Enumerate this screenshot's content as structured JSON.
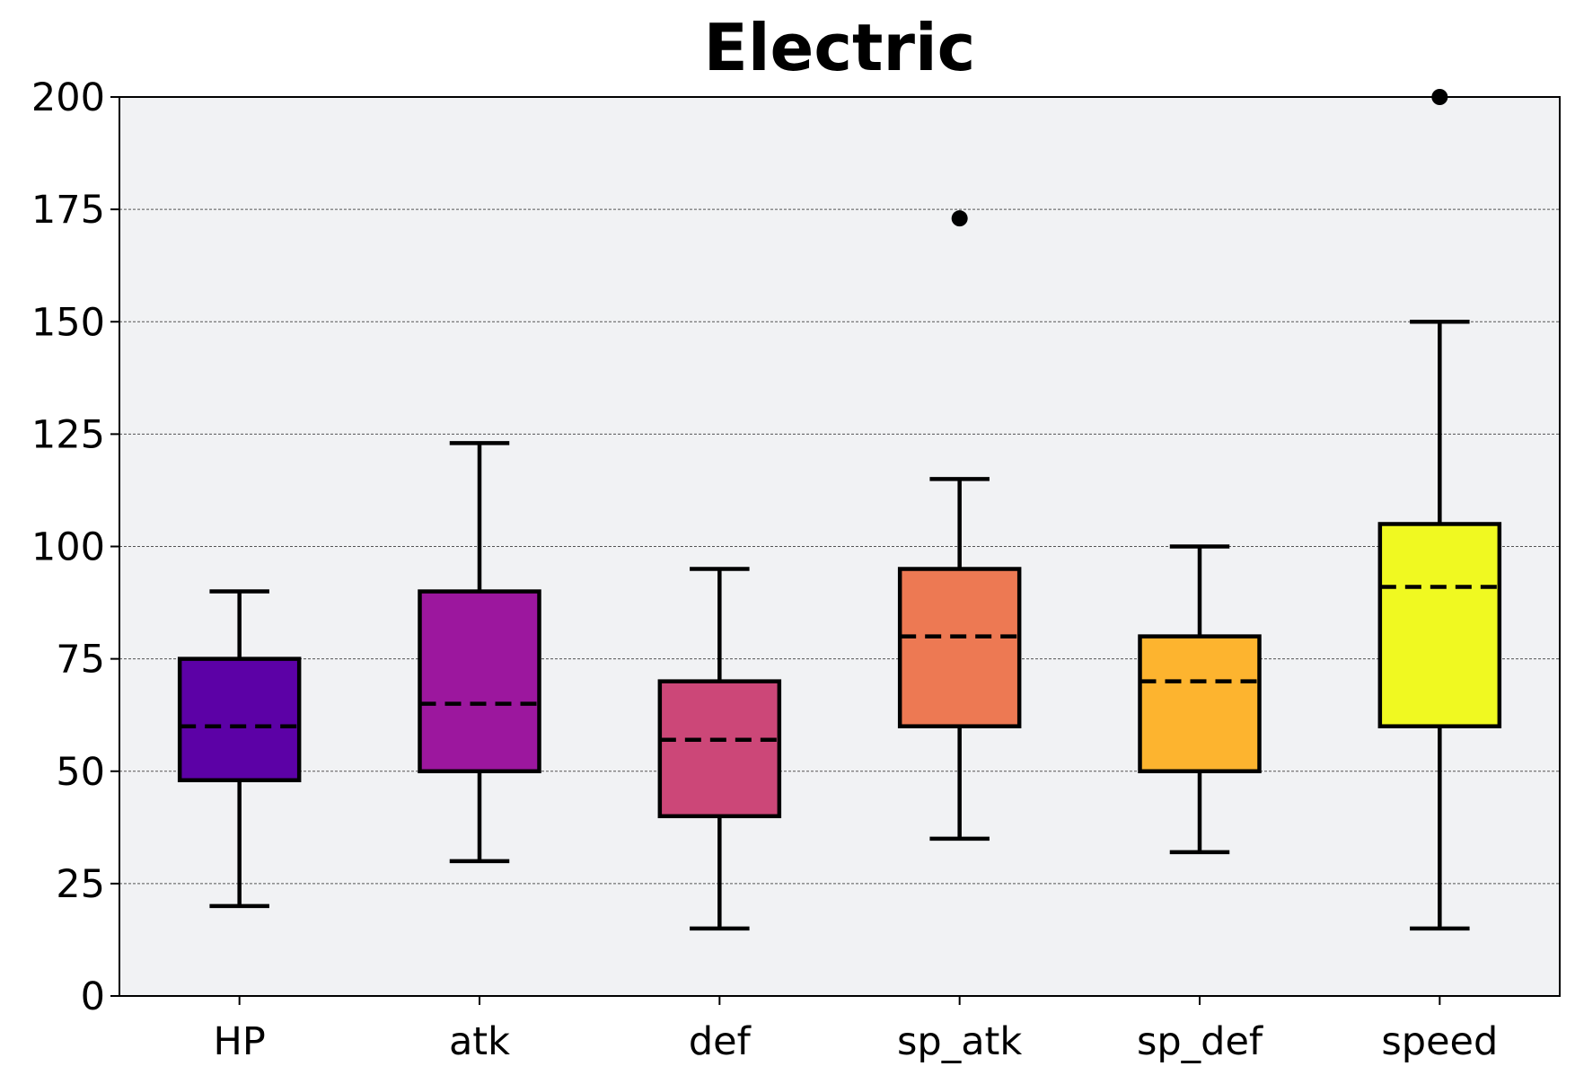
{
  "chart_data": {
    "type": "box",
    "title": "Electric",
    "xlabel": "",
    "ylabel": "",
    "ylim": [
      0,
      200
    ],
    "yticks": [
      0,
      25,
      50,
      75,
      100,
      125,
      150,
      175,
      200
    ],
    "grid": "y-dashed",
    "background": "#f1f2f4",
    "median_style": "dashed",
    "categories": [
      "HP",
      "atk",
      "def",
      "sp_atk",
      "sp_def",
      "speed"
    ],
    "boxes": [
      {
        "name": "HP",
        "whisker_low": 20,
        "q1": 48,
        "median": 60,
        "q3": 75,
        "whisker_high": 90,
        "outliers": [],
        "color": "#5c01a6"
      },
      {
        "name": "atk",
        "whisker_low": 30,
        "q1": 50,
        "median": 65,
        "q3": 90,
        "whisker_high": 123,
        "outliers": [],
        "color": "#9c179e"
      },
      {
        "name": "def",
        "whisker_low": 15,
        "q1": 40,
        "median": 57,
        "q3": 70,
        "whisker_high": 95,
        "outliers": [],
        "color": "#cc4778"
      },
      {
        "name": "sp_atk",
        "whisker_low": 35,
        "q1": 60,
        "median": 80,
        "q3": 95,
        "whisker_high": 115,
        "outliers": [
          173
        ],
        "color": "#ed7953"
      },
      {
        "name": "sp_def",
        "whisker_low": 32,
        "q1": 50,
        "median": 70,
        "q3": 80,
        "whisker_high": 100,
        "outliers": [],
        "color": "#fdb42f"
      },
      {
        "name": "speed",
        "whisker_low": 15,
        "q1": 60,
        "median": 91,
        "q3": 105,
        "whisker_high": 150,
        "outliers": [
          200
        ],
        "color": "#f0f921"
      }
    ]
  }
}
